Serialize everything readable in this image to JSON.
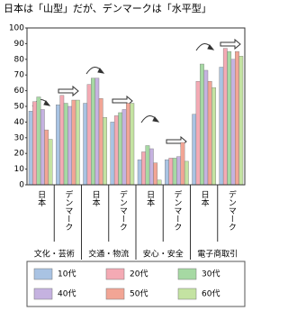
{
  "chart_data": {
    "type": "bar",
    "title": "日本は「山型」だが、デンマークは「水平型」",
    "categories": [
      "日本",
      "デンマーク",
      "日本",
      "デンマーク",
      "日本",
      "デンマーク",
      "日本",
      "デンマーク"
    ],
    "groups": [
      "文化・芸術",
      "交通・物流",
      "安心・安全",
      "電子商取引"
    ],
    "series": [
      {
        "name": "10代",
        "color": "#a9c3e3",
        "values": [
          47,
          51,
          52,
          40,
          16,
          16,
          45,
          75
        ]
      },
      {
        "name": "20代",
        "color": "#f4aab4",
        "values": [
          53,
          57,
          64,
          44,
          21,
          17,
          66,
          87
        ]
      },
      {
        "name": "30代",
        "color": "#a6d9a3",
        "values": [
          56,
          52,
          68,
          46,
          25,
          17,
          77,
          85
        ]
      },
      {
        "name": "40代",
        "color": "#c5b2e0",
        "values": [
          48,
          50,
          68,
          48,
          23,
          18,
          73,
          80
        ]
      },
      {
        "name": "50代",
        "color": "#f2a595",
        "values": [
          35,
          54,
          55,
          52,
          14,
          27,
          66,
          85
        ]
      },
      {
        "name": "60代",
        "color": "#c4e3a2",
        "values": [
          29,
          54,
          43,
          52,
          3,
          15,
          62,
          82
        ]
      }
    ],
    "ylim": [
      0,
      100
    ],
    "yticks": [
      0,
      10,
      20,
      30,
      40,
      50,
      60,
      70,
      80,
      90,
      100
    ]
  }
}
